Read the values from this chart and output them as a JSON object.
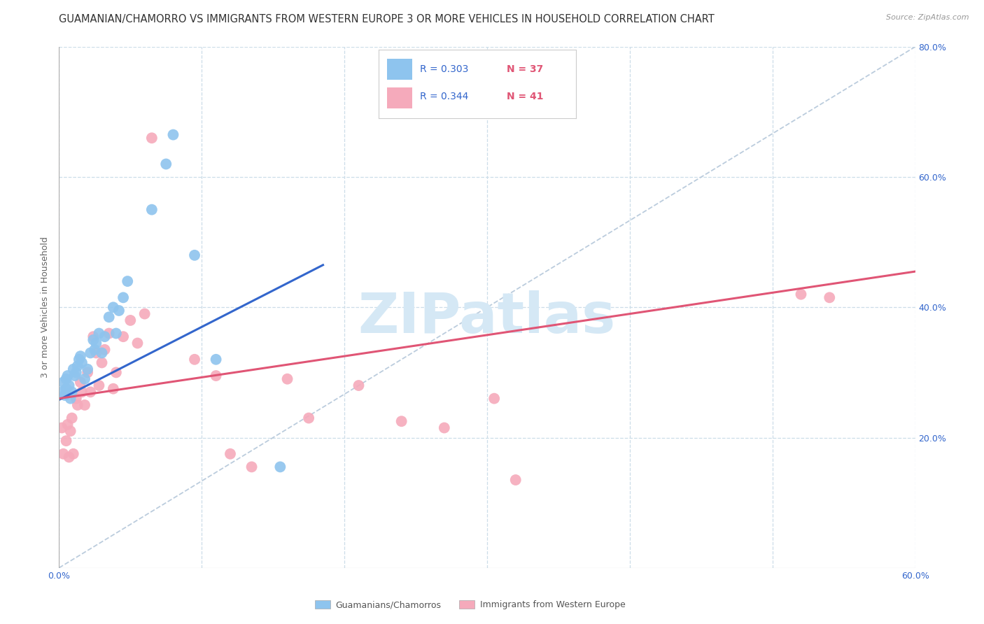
{
  "title": "GUAMANIAN/CHAMORRO VS IMMIGRANTS FROM WESTERN EUROPE 3 OR MORE VEHICLES IN HOUSEHOLD CORRELATION CHART",
  "source": "Source: ZipAtlas.com",
  "ylabel": "3 or more Vehicles in Household",
  "xlim": [
    0.0,
    0.6
  ],
  "ylim": [
    0.0,
    0.8
  ],
  "xticks": [
    0.0,
    0.6
  ],
  "yticks": [
    0.0,
    0.2,
    0.4,
    0.6,
    0.8
  ],
  "xtick_labels": [
    "0.0%",
    "60.0%"
  ],
  "ytick_labels_right": [
    "",
    "20.0%",
    "40.0%",
    "60.0%",
    "80.0%"
  ],
  "grid_yticks": [
    0.2,
    0.4,
    0.6,
    0.8
  ],
  "grid_xticks": [
    0.0,
    0.1,
    0.2,
    0.3,
    0.4,
    0.5,
    0.6
  ],
  "blue_color": "#8EC4EE",
  "pink_color": "#F5AABB",
  "blue_line_color": "#3366CC",
  "pink_line_color": "#E05575",
  "diag_line_color": "#BBCCDD",
  "legend_r_blue": "0.303",
  "legend_n_blue": "37",
  "legend_r_pink": "0.344",
  "legend_n_pink": "41",
  "legend_label_blue": "Guamanians/Chamorros",
  "legend_label_pink": "Immigrants from Western Europe",
  "blue_scatter_x": [
    0.002,
    0.003,
    0.004,
    0.005,
    0.005,
    0.006,
    0.007,
    0.008,
    0.009,
    0.01,
    0.011,
    0.012,
    0.013,
    0.014,
    0.015,
    0.016,
    0.018,
    0.02,
    0.022,
    0.024,
    0.025,
    0.026,
    0.028,
    0.03,
    0.032,
    0.035,
    0.038,
    0.04,
    0.042,
    0.045,
    0.048,
    0.065,
    0.075,
    0.08,
    0.095,
    0.11,
    0.155
  ],
  "blue_scatter_y": [
    0.27,
    0.285,
    0.265,
    0.275,
    0.29,
    0.295,
    0.28,
    0.26,
    0.27,
    0.305,
    0.295,
    0.3,
    0.31,
    0.32,
    0.325,
    0.315,
    0.29,
    0.305,
    0.33,
    0.35,
    0.335,
    0.345,
    0.36,
    0.33,
    0.355,
    0.385,
    0.4,
    0.36,
    0.395,
    0.415,
    0.44,
    0.55,
    0.62,
    0.665,
    0.48,
    0.32,
    0.155
  ],
  "pink_scatter_x": [
    0.002,
    0.003,
    0.005,
    0.006,
    0.007,
    0.008,
    0.009,
    0.01,
    0.012,
    0.013,
    0.015,
    0.016,
    0.018,
    0.02,
    0.022,
    0.024,
    0.026,
    0.028,
    0.03,
    0.032,
    0.035,
    0.038,
    0.04,
    0.045,
    0.05,
    0.055,
    0.06,
    0.065,
    0.095,
    0.11,
    0.12,
    0.135,
    0.16,
    0.175,
    0.21,
    0.24,
    0.27,
    0.305,
    0.32,
    0.52,
    0.54
  ],
  "pink_scatter_y": [
    0.215,
    0.175,
    0.195,
    0.22,
    0.17,
    0.21,
    0.23,
    0.175,
    0.26,
    0.25,
    0.285,
    0.27,
    0.25,
    0.3,
    0.27,
    0.355,
    0.33,
    0.28,
    0.315,
    0.335,
    0.36,
    0.275,
    0.3,
    0.355,
    0.38,
    0.345,
    0.39,
    0.66,
    0.32,
    0.295,
    0.175,
    0.155,
    0.29,
    0.23,
    0.28,
    0.225,
    0.215,
    0.26,
    0.135,
    0.42,
    0.415
  ],
  "blue_trend_x": [
    0.0,
    0.185
  ],
  "blue_trend_y": [
    0.258,
    0.465
  ],
  "pink_trend_x": [
    0.0,
    0.6
  ],
  "pink_trend_y": [
    0.26,
    0.455
  ],
  "background_color": "#FFFFFF",
  "grid_color": "#CCDDE8",
  "title_fontsize": 10.5,
  "tick_fontsize": 9,
  "watermark_text": "ZIPatlas",
  "watermark_color": "#D5E8F5",
  "watermark_fontsize": 58
}
